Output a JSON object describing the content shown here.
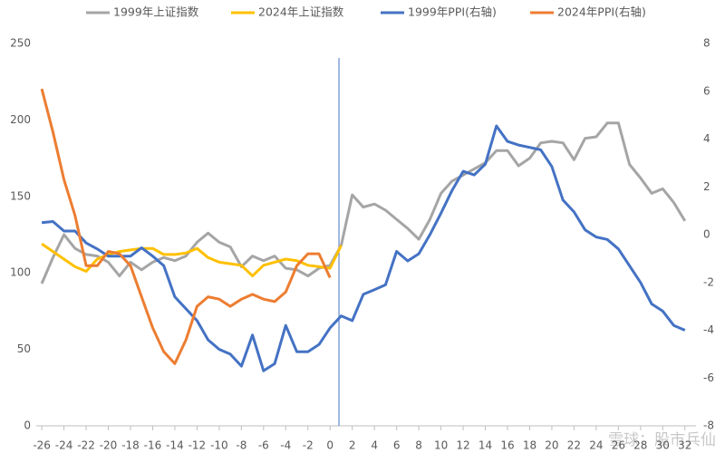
{
  "chart_data": {
    "type": "line",
    "x": [
      -26,
      -25,
      -24,
      -23,
      -22,
      -21,
      -20,
      -19,
      -18,
      -17,
      -16,
      -15,
      -14,
      -13,
      -12,
      -11,
      -10,
      -9,
      -8,
      -7,
      -6,
      -5,
      -4,
      -3,
      -2,
      -1,
      0,
      1,
      2,
      3,
      4,
      5,
      6,
      7,
      8,
      9,
      10,
      11,
      12,
      13,
      14,
      15,
      16,
      17,
      18,
      19,
      20,
      21,
      22,
      23,
      24,
      25,
      26,
      27,
      28,
      29,
      30,
      31,
      32
    ],
    "series": [
      {
        "name": "1999年上证指数",
        "color": "#a5a5a5",
        "values": [
          93,
          110,
          125,
          116,
          112,
          111,
          107,
          98,
          107,
          102,
          107,
          110,
          108,
          111,
          120,
          126,
          120,
          117,
          104,
          111,
          108,
          111,
          103,
          102,
          98,
          103,
          105,
          118,
          151,
          143,
          145,
          141,
          135,
          129,
          122,
          135,
          152,
          160,
          164,
          168,
          172,
          180,
          180,
          170,
          175,
          185,
          186,
          185,
          174,
          188,
          189,
          198,
          198,
          171,
          162,
          152,
          155,
          146,
          134
        ]
      },
      {
        "name": "2024年上证指数",
        "color": "#ffc000",
        "values": [
          119,
          114,
          109,
          104,
          101,
          109,
          112,
          114,
          115,
          116,
          116,
          112,
          112,
          113,
          116,
          110,
          107,
          106,
          105,
          98,
          105,
          107,
          109,
          108,
          105,
          104,
          103,
          118,
          null,
          null,
          null,
          null,
          null,
          null,
          null,
          null,
          null,
          null,
          null,
          null,
          null,
          null,
          null,
          null,
          null,
          null,
          null,
          null,
          null,
          null,
          null,
          null,
          null,
          null,
          null,
          null,
          null,
          null,
          null
        ]
      },
      {
        "name": "1999年PPI(右轴)",
        "color": "#4472c4",
        "axis": "y2",
        "values": [
          0.5,
          0.55,
          0.15,
          0.15,
          -0.35,
          -0.6,
          -0.9,
          -0.9,
          -0.9,
          -0.55,
          -0.9,
          -1.3,
          -2.6,
          -3.1,
          -3.6,
          -4.4,
          -4.8,
          -5.0,
          -5.5,
          -4.2,
          -5.7,
          -5.4,
          -3.8,
          -4.9,
          -4.9,
          -4.6,
          -3.9,
          -3.4,
          -3.6,
          -2.5,
          -2.3,
          -2.1,
          -0.7,
          -1.1,
          -0.8,
          0,
          0.9,
          1.85,
          2.65,
          2.5,
          2.95,
          4.55,
          3.9,
          3.75,
          3.65,
          3.55,
          2.85,
          1.45,
          0.95,
          0.2,
          -0.1,
          -0.2,
          -0.6,
          -1.3,
          -2.0,
          -2.9,
          -3.2,
          -3.8,
          -4.0
        ]
      },
      {
        "name": "2024年PPI(右轴)",
        "color": "#ed7d31",
        "axis": "y2",
        "values": [
          6.1,
          4.3,
          2.3,
          0.8,
          -1.3,
          -1.3,
          -0.7,
          -0.8,
          -1.3,
          -2.6,
          -3.9,
          -4.9,
          -5.4,
          -4.4,
          -3.0,
          -2.6,
          -2.7,
          -3.0,
          -2.7,
          -2.5,
          -2.7,
          -2.8,
          -2.4,
          -1.3,
          -0.8,
          -0.8,
          -1.8,
          null,
          null,
          null,
          null,
          null,
          null,
          null,
          null,
          null,
          null,
          null,
          null,
          null,
          null,
          null,
          null,
          null,
          null,
          null,
          null,
          null,
          null,
          null,
          null,
          null,
          null,
          null,
          null,
          null,
          null,
          null,
          null
        ]
      }
    ],
    "xlim": [
      -26.5,
      33
    ],
    "xticks": [
      -26,
      -24,
      -22,
      -20,
      -18,
      -16,
      -14,
      -12,
      -10,
      -8,
      -6,
      -4,
      -2,
      0,
      2,
      4,
      6,
      8,
      10,
      12,
      14,
      16,
      18,
      20,
      22,
      24,
      26,
      28,
      30,
      32
    ],
    "ylim": [
      0,
      250
    ],
    "yticks": [
      0,
      50,
      100,
      150,
      200,
      250
    ],
    "y2lim": [
      -8,
      8
    ],
    "y2ticks": [
      -8,
      -6,
      -4,
      -2,
      0,
      2,
      4,
      6,
      8
    ],
    "vline": 0.8,
    "vline_color": "#4472c4",
    "legend": "top",
    "grid": false,
    "watermark": "雪球：股市兵仙"
  }
}
